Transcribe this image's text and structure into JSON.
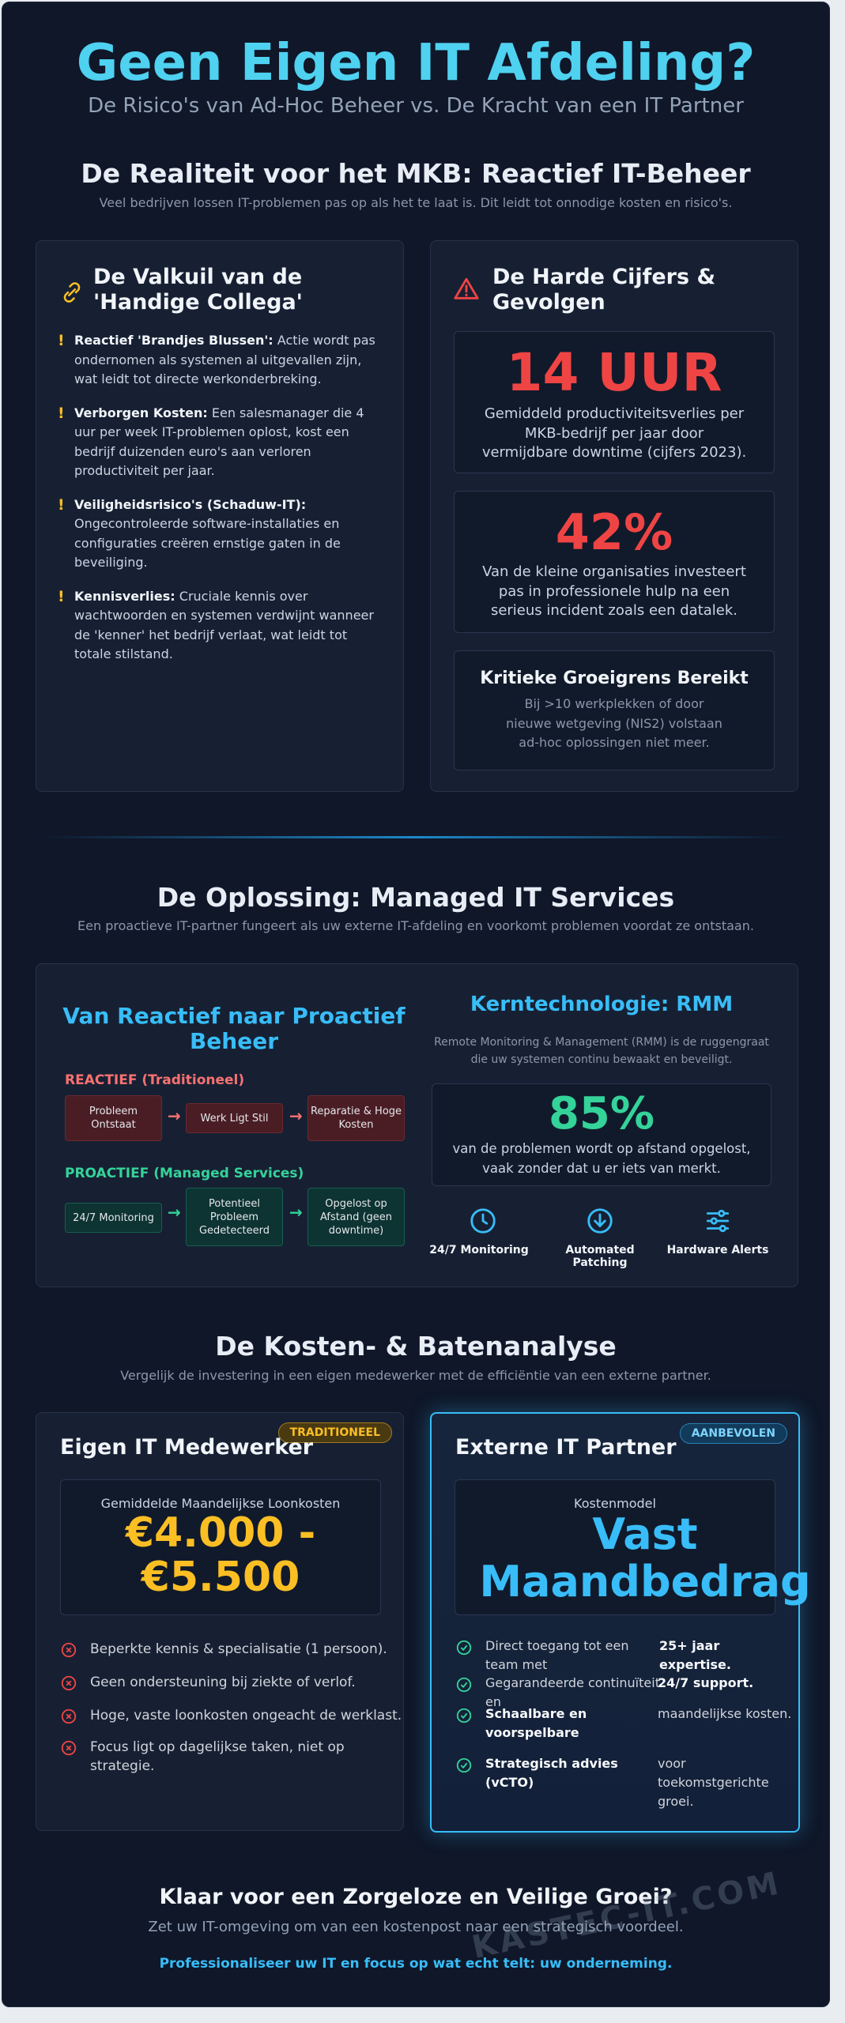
{
  "header": {
    "title": "Geen Eigen IT Afdeling?",
    "subtitle": "De Risico's van Ad-Hoc Beheer vs. De Kracht van een IT Partner"
  },
  "reality": {
    "heading": "De Realiteit voor het MKB: Reactief IT-Beheer",
    "intro": "Veel bedrijven lossen IT-problemen pas op als het te laat is. Dit leidt tot onnodige kosten en risico's.",
    "pitfall": {
      "title": "De Valkuil van de 'Handige Collega'",
      "items": [
        {
          "label": "Reactief 'Brandjes Blussen':",
          "text": "Actie wordt pas ondernomen als systemen al uitgevallen zijn, wat leidt tot directe werkonderbreking."
        },
        {
          "label": "Verborgen Kosten:",
          "text": "Een salesmanager die 4 uur per week IT-problemen oplost, kost een bedrijf duizenden euro's aan verloren productiviteit per jaar."
        },
        {
          "label": "Veiligheidsrisico's (Schaduw-IT):",
          "text": "Ongecontroleerde software-installaties en configuraties creëren ernstige gaten in de beveiliging."
        },
        {
          "label": "Kennisverlies:",
          "text": "Cruciale kennis over wachtwoorden en systemen verdwijnt wanneer de 'kenner' het bedrijf verlaat, wat leidt tot totale stilstand."
        }
      ]
    },
    "figures": {
      "title": "De Harde Cijfers & Gevolgen",
      "stats": [
        {
          "value": "14 UUR",
          "text": "Gemiddeld productiviteitsverlies per MKB-bedrijf per jaar door vermijdbare downtime (cijfers 2023)."
        },
        {
          "value": "42%",
          "text": "Van de kleine organisaties investeert pas in professionele hulp na een serieus incident zoals een datalek."
        }
      ],
      "growth": {
        "title": "Kritieke Groeigrens Bereikt",
        "text": "Bij >10 werkplekken of door nieuwe wetgeving (NIS2) volstaan ad-hoc oplossingen niet meer."
      }
    }
  },
  "solution": {
    "heading": "De Oplossing: Managed IT Services",
    "intro": "Een proactieve IT-partner fungeert als uw externe IT-afdeling en voorkomt problemen voordat ze ontstaan.",
    "flow": {
      "title": "Van Reactief naar Proactief Beheer",
      "reactive": {
        "label": "REACTIEF (Traditioneel)",
        "steps": [
          "Probleem Ontstaat",
          "Werk Ligt Stil",
          "Reparatie & Hoge Kosten"
        ]
      },
      "proactive": {
        "label": "PROACTIEF (Managed Services)",
        "steps": [
          "24/7 Monitoring",
          "Potentieel Probleem Gedetecteerd",
          "Opgelost op Afstand (geen downtime)"
        ]
      }
    },
    "rmm": {
      "title": "Kerntechnologie: RMM",
      "intro": "Remote Monitoring & Management (RMM) is de ruggengraat die uw systemen continu bewaakt en beveiligt.",
      "stat": {
        "value": "85%",
        "text": "van de problemen wordt op afstand opgelost, vaak zonder dat u er iets van merkt."
      },
      "features": [
        "24/7 Monitoring",
        "Automated Patching",
        "Hardware Alerts"
      ]
    }
  },
  "costs": {
    "heading": "De Kosten- & Batenanalyse",
    "intro": "Vergelijk de investering in een eigen medewerker met de efficiëntie van een externe partner.",
    "inhouse": {
      "badge": "TRADITIONEEL",
      "title": "Eigen IT Medewerker",
      "box_label": "Gemiddelde Maandelijkse Loonkosten",
      "box_value": "€4.000 - €5.500",
      "items": [
        "Beperkte kennis & specialisatie (1 persoon).",
        "Geen ondersteuning bij ziekte of verlof.",
        "Hoge, vaste loonkosten ongeacht de werklast.",
        "Focus ligt op dagelijkse taken, niet op strategie."
      ]
    },
    "partner": {
      "badge": "AANBEVOLEN",
      "title": "Externe IT Partner",
      "box_label": "Kostenmodel",
      "box_value": "Vast Maandbedrag",
      "items": [
        [
          {
            "text": "Direct toegang tot een team met",
            "strong": false
          },
          {
            "text": "25+ jaar expertise.",
            "strong": true
          }
        ],
        [
          {
            "text": "Gegarandeerde continuïteit en",
            "strong": false
          },
          {
            "text": "24/7 support.",
            "strong": true
          }
        ],
        [
          {
            "text": "Schaalbare en voorspelbare",
            "strong": true
          },
          {
            "text": "maandelijkse kosten.",
            "strong": false
          }
        ],
        [
          {
            "text": "Strategisch advies (vCTO)",
            "strong": true
          },
          {
            "text": "voor toekomstgerichte groei.",
            "strong": false
          }
        ]
      ]
    }
  },
  "cta": {
    "heading": "Klaar voor een Zorgeloze en Veilige Groei?",
    "text": "Zet uw IT-omgeving om van een kostenpost naar een strategisch voordeel.",
    "link": "Professionaliseer uw IT en focus op wat echt telt: uw onderneming."
  },
  "watermark": "KASTEC-IT.COM"
}
